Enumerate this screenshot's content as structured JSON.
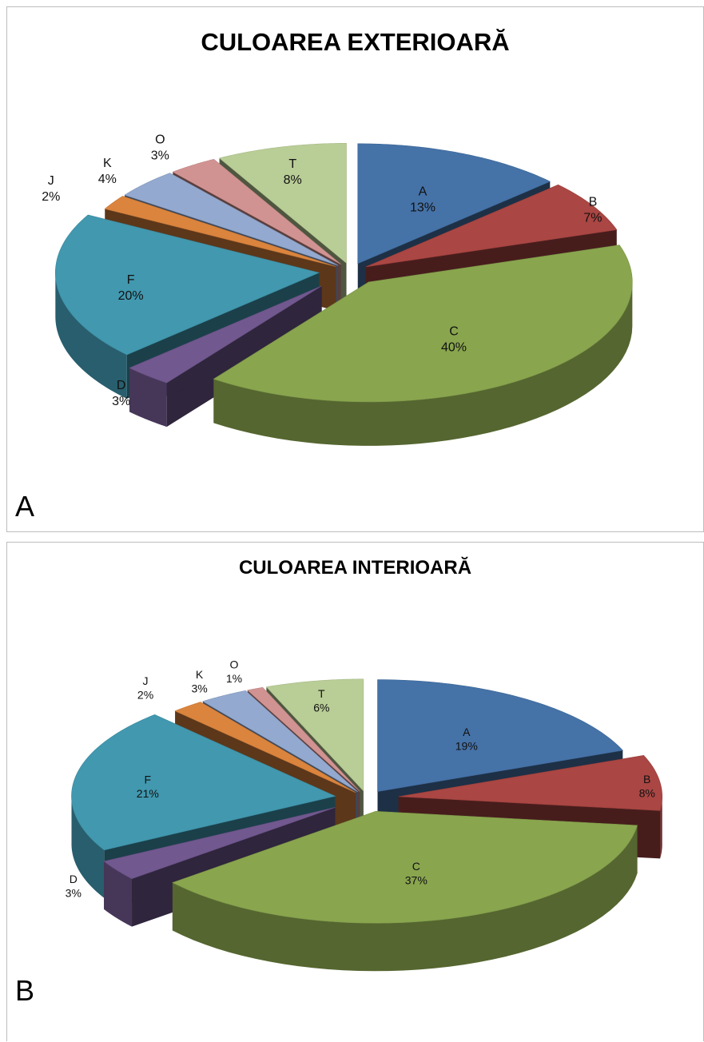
{
  "panels": [
    {
      "letter": "A",
      "chart_data": {
        "type": "pie",
        "title": "CULOAREA EXTERIOARĂ",
        "slices": [
          {
            "label": "A",
            "value": 13,
            "display": "13%",
            "color": "#4572A7"
          },
          {
            "label": "B",
            "value": 7,
            "display": "7%",
            "color": "#AA4643"
          },
          {
            "label": "C",
            "value": 40,
            "display": "40%",
            "color": "#89A54E"
          },
          {
            "label": "D",
            "value": 3,
            "display": "3%",
            "color": "#71588F"
          },
          {
            "label": "F",
            "value": 20,
            "display": "20%",
            "color": "#4198AF"
          },
          {
            "label": "J",
            "value": 2,
            "display": "2%",
            "color": "#DB843D"
          },
          {
            "label": "K",
            "value": 4,
            "display": "4%",
            "color": "#93A9CF"
          },
          {
            "label": "O",
            "value": 3,
            "display": "3%",
            "color": "#D19392"
          },
          {
            "label": "T",
            "value": 8,
            "display": "8%",
            "color": "#B9CD96"
          }
        ]
      }
    },
    {
      "letter": "B",
      "chart_data": {
        "type": "pie",
        "title": "CULOAREA INTERIOARĂ",
        "slices": [
          {
            "label": "A",
            "value": 19,
            "display": "19%",
            "color": "#4572A7"
          },
          {
            "label": "B",
            "value": 8,
            "display": "8%",
            "color": "#AA4643"
          },
          {
            "label": "C",
            "value": 37,
            "display": "37%",
            "color": "#89A54E"
          },
          {
            "label": "D",
            "value": 3,
            "display": "3%",
            "color": "#71588F"
          },
          {
            "label": "F",
            "value": 21,
            "display": "21%",
            "color": "#4198AF"
          },
          {
            "label": "J",
            "value": 2,
            "display": "2%",
            "color": "#DB843D"
          },
          {
            "label": "K",
            "value": 3,
            "display": "3%",
            "color": "#93A9CF"
          },
          {
            "label": "O",
            "value": 1,
            "display": "1%",
            "color": "#D19392"
          },
          {
            "label": "T",
            "value": 6,
            "display": "6%",
            "color": "#B9CD96"
          }
        ]
      }
    }
  ]
}
